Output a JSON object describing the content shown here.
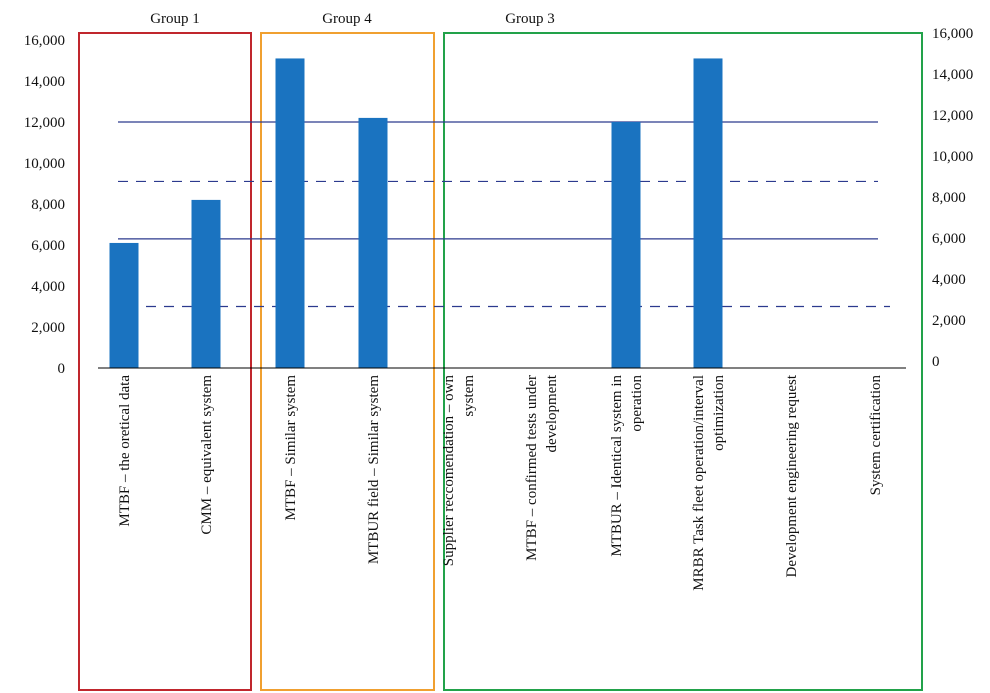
{
  "chart_data": {
    "type": "bar",
    "categories": [
      [
        "MTBF – the oretical data"
      ],
      [
        "CMM – equivalent system"
      ],
      [
        "MTBF – Similar system"
      ],
      [
        "MTBUR field – Similar system"
      ],
      [
        "Supplier reccomendation – own",
        "system"
      ],
      [
        "MTBF – confirmed tests under",
        "development"
      ],
      [
        "MTBUR – Identical system in",
        "operation"
      ],
      [
        "MRBR Task fleet operation/interval",
        "optimization"
      ],
      [
        "Development engineering request"
      ],
      [
        "System certification"
      ]
    ],
    "values": [
      6100,
      8200,
      15100,
      12200,
      null,
      null,
      12000,
      15100,
      null,
      null
    ],
    "ylim": [
      0,
      16000
    ],
    "yticks": [
      "0",
      "2,000",
      "4,000",
      "6,000",
      "8,000",
      "10,000",
      "12,000",
      "14,000",
      "16,000"
    ],
    "right_axis_ticks": [
      "0",
      "2,000",
      "4,000",
      "6,000",
      "8,000",
      "10,000",
      "12,000",
      "14,000",
      "16,000"
    ],
    "reference_lines": [
      {
        "value": 12000,
        "style": "solid"
      },
      {
        "value": 9100,
        "style": "dashed"
      },
      {
        "value": 6300,
        "style": "solid"
      },
      {
        "value": 3000,
        "style": "dashed"
      }
    ],
    "groups": [
      {
        "label": "Group 1",
        "from": 0,
        "to": 1,
        "color": "#c0262d"
      },
      {
        "label": "Group 4",
        "from": 2,
        "to": 3,
        "color": "#f0a030"
      },
      {
        "label": "Group 3",
        "from": 4,
        "to": 9,
        "color": "#22a24a"
      }
    ],
    "colors": {
      "bar": "#1a73c0",
      "reference_line": "#2c3a8e"
    }
  }
}
